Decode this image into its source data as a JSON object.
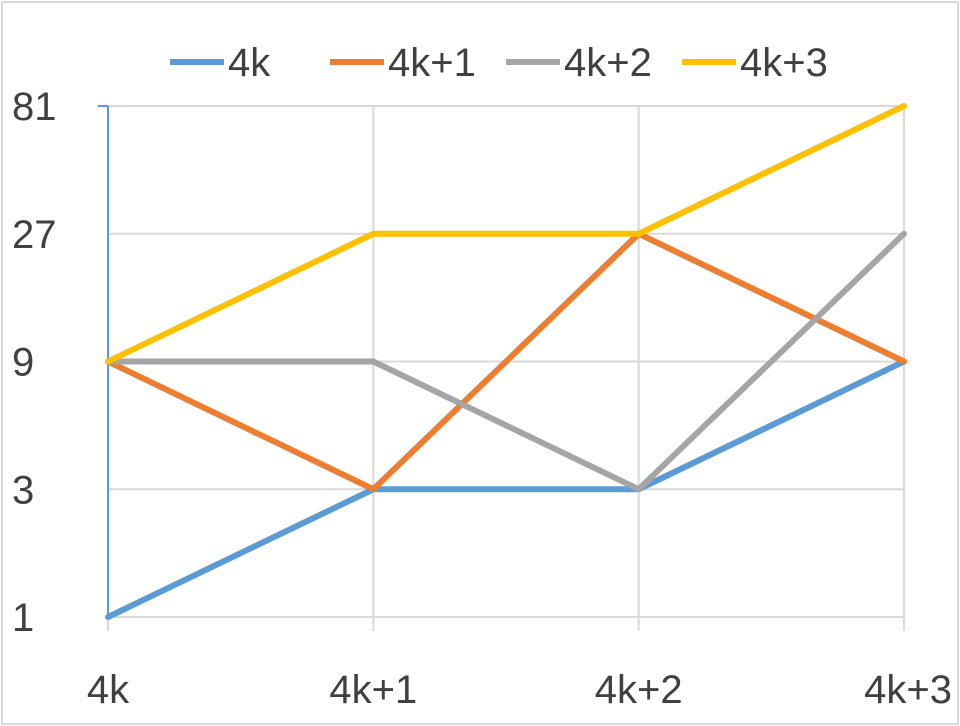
{
  "chart_data": {
    "type": "line",
    "y_scale": "log",
    "y_base": 3,
    "ylim": [
      1,
      81
    ],
    "y_ticks": [
      1,
      3,
      9,
      27,
      81
    ],
    "y_tick_labels": [
      "1",
      "3",
      "9",
      "27",
      "81"
    ],
    "categories": [
      "4k",
      "4k+1",
      "4k+2",
      "4k+3"
    ],
    "grid": true,
    "legend_position": "top",
    "series": [
      {
        "name": "4k",
        "color": "#5B9BD5",
        "values": [
          1,
          3,
          3,
          9
        ]
      },
      {
        "name": "4k+1",
        "color": "#ED7D31",
        "values": [
          9,
          3,
          27,
          9
        ]
      },
      {
        "name": "4k+2",
        "color": "#A5A5A5",
        "values": [
          9,
          9,
          3,
          27
        ]
      },
      {
        "name": "4k+3",
        "color": "#FFC000",
        "values": [
          9,
          27,
          27,
          81
        ]
      }
    ]
  }
}
